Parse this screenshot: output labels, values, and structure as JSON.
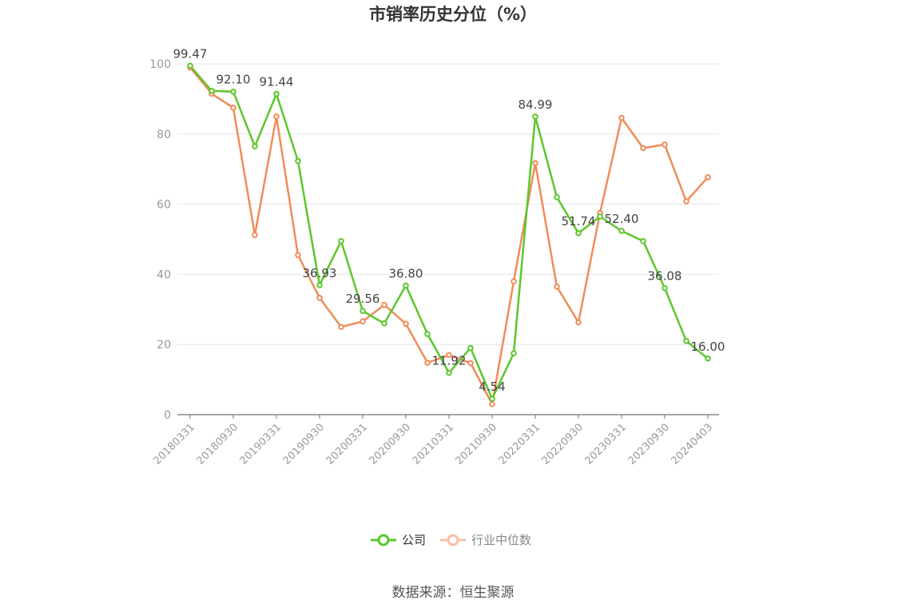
{
  "chart_data": {
    "type": "line",
    "title": "市销率历史分位（%）",
    "source": "数据来源：恒生聚源",
    "xlabel": "",
    "ylabel": "",
    "ylim": [
      0,
      100
    ],
    "yticks": [
      0,
      20,
      40,
      60,
      80,
      100
    ],
    "grid": true,
    "legend_position": "bottom",
    "x": [
      "20180331",
      "20180630",
      "20180930",
      "20181231",
      "20190331",
      "20190630",
      "20190930",
      "20191231",
      "20200331",
      "20200630",
      "20200930",
      "20201231",
      "20210331",
      "20210630",
      "20210930",
      "20211231",
      "20220331",
      "20220630",
      "20220930",
      "20221231",
      "20230331",
      "20230630",
      "20230930",
      "20231231",
      "20240403"
    ],
    "x_tick_labels": [
      "20180331",
      "20180930",
      "20190331",
      "20190930",
      "20200331",
      "20200930",
      "20210331",
      "20210930",
      "20220331",
      "20220930",
      "20230331",
      "20230930",
      "20240403"
    ],
    "series": [
      {
        "name": "公司",
        "color": "#5cc72b",
        "values": [
          99.47,
          92.3,
          92.1,
          76.5,
          91.44,
          72.3,
          36.93,
          49.5,
          29.56,
          26.0,
          36.8,
          23.0,
          11.92,
          19.0,
          4.54,
          17.5,
          84.99,
          62.0,
          51.74,
          56.5,
          52.4,
          49.5,
          36.08,
          21.0,
          16.0
        ],
        "labels": {
          "0": "99.47",
          "2": "92.10",
          "4": "91.44",
          "6": "36.93",
          "8": "29.56",
          "10": "36.80",
          "12": "11.92",
          "14": "4.54",
          "16": "84.99",
          "18": "51.74",
          "20": "52.40",
          "22": "36.08",
          "24": "16.00"
        }
      },
      {
        "name": "行业中位数",
        "color": "#f08c5a",
        "values": [
          99.0,
          91.5,
          87.5,
          51.2,
          85.0,
          45.5,
          33.3,
          25.0,
          26.6,
          31.3,
          25.9,
          14.8,
          17.0,
          14.7,
          3.0,
          38.0,
          71.7,
          36.5,
          26.3,
          57.5,
          84.6,
          76.0,
          77.0,
          60.8,
          67.7
        ]
      }
    ]
  }
}
